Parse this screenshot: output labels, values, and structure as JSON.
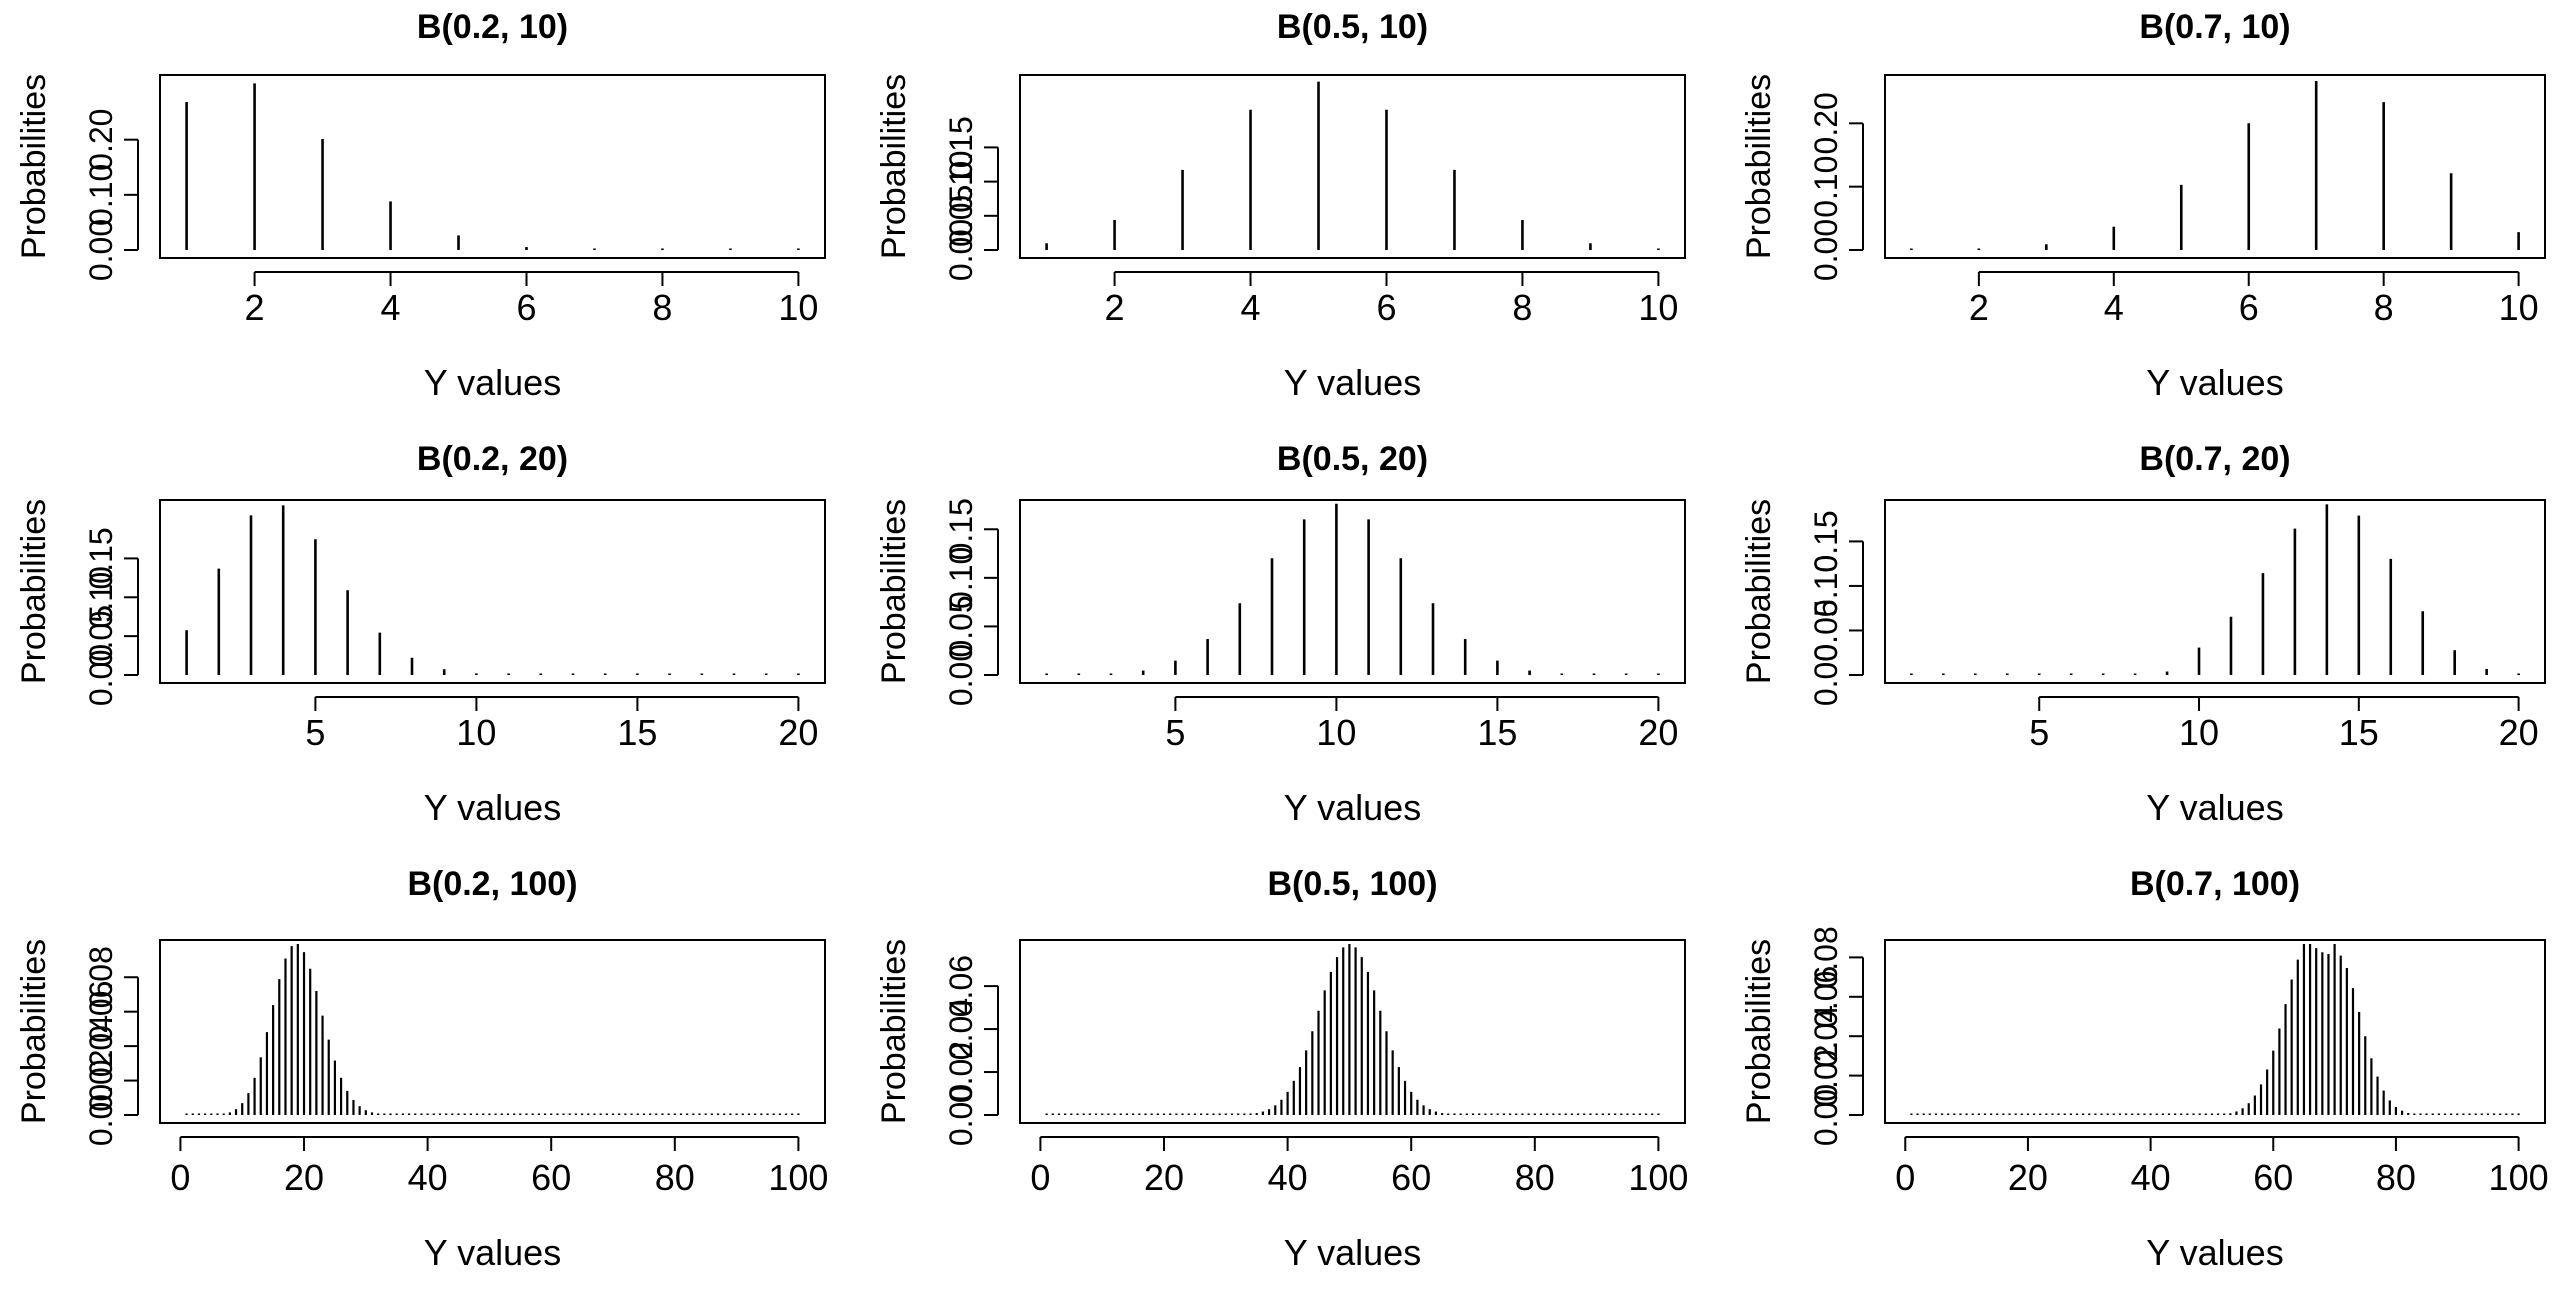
{
  "chart_data": [
    {
      "type": "bar",
      "title": "B(0.2, 10)",
      "xlabel": "Y values",
      "ylabel": "Probabilities",
      "x": [
        1,
        2,
        3,
        4,
        5,
        6,
        7,
        8,
        9,
        10
      ],
      "values": [
        0.2684,
        0.302,
        0.2013,
        0.0881,
        0.0264,
        0.0055,
        0.0008,
        0.0001,
        0.0,
        0.0
      ],
      "xticks": [
        "2",
        "4",
        "6",
        "8",
        "10"
      ],
      "yticks": [
        "0.00",
        "0.10",
        "0.20"
      ],
      "ylim": [
        0,
        0.31
      ],
      "grid": false
    },
    {
      "type": "bar",
      "title": "B(0.5, 10)",
      "xlabel": "Y values",
      "ylabel": "Probabilities",
      "x": [
        1,
        2,
        3,
        4,
        5,
        6,
        7,
        8,
        9,
        10
      ],
      "values": [
        0.0098,
        0.0439,
        0.1172,
        0.2051,
        0.2461,
        0.2051,
        0.1172,
        0.0439,
        0.0098,
        0.001
      ],
      "xticks": [
        "2",
        "4",
        "6",
        "8",
        "10"
      ],
      "yticks": [
        "0.00",
        "0.05",
        "0.10",
        "0.15"
      ],
      "ylim": [
        0,
        0.25
      ],
      "grid": false
    },
    {
      "type": "bar",
      "title": "B(0.7, 10)",
      "xlabel": "Y values",
      "ylabel": "Probabilities",
      "x": [
        1,
        2,
        3,
        4,
        5,
        6,
        7,
        8,
        9,
        10
      ],
      "values": [
        0.0001,
        0.0014,
        0.009,
        0.0368,
        0.1029,
        0.2001,
        0.2668,
        0.2335,
        0.1211,
        0.0282
      ],
      "xticks": [
        "2",
        "4",
        "6",
        "8",
        "10"
      ],
      "yticks": [
        "0.00",
        "0.10",
        "0.20"
      ],
      "ylim": [
        0,
        0.27
      ],
      "grid": false
    },
    {
      "type": "bar",
      "title": "B(0.2, 20)",
      "xlabel": "Y values",
      "ylabel": "Probabilities",
      "x": [
        1,
        2,
        3,
        4,
        5,
        6,
        7,
        8,
        9,
        10,
        11,
        12,
        13,
        14,
        15,
        16,
        17,
        18,
        19,
        20
      ],
      "values": [
        0.0576,
        0.1369,
        0.2054,
        0.2182,
        0.1746,
        0.1091,
        0.0545,
        0.0222,
        0.0074,
        0.002,
        0.0005,
        0.0001,
        0,
        0,
        0,
        0,
        0,
        0,
        0,
        0
      ],
      "xticks": [
        "5",
        "10",
        "15",
        "20"
      ],
      "yticks": [
        "0.00",
        "0.05",
        "0.10",
        "0.15"
      ],
      "ylim": [
        0,
        0.22
      ],
      "grid": false
    },
    {
      "type": "bar",
      "title": "B(0.5, 20)",
      "xlabel": "Y values",
      "ylabel": "Probabilities",
      "x": [
        1,
        2,
        3,
        4,
        5,
        6,
        7,
        8,
        9,
        10,
        11,
        12,
        13,
        14,
        15,
        16,
        17,
        18,
        19,
        20
      ],
      "values": [
        0,
        0.0002,
        0.0011,
        0.0046,
        0.0148,
        0.037,
        0.0739,
        0.1201,
        0.1602,
        0.1762,
        0.1602,
        0.1201,
        0.0739,
        0.037,
        0.0148,
        0.0046,
        0.0011,
        0.0002,
        0,
        0
      ],
      "xticks": [
        "5",
        "10",
        "15",
        "20"
      ],
      "yticks": [
        "0.00",
        "0.05",
        "0.10",
        "0.15"
      ],
      "ylim": [
        0,
        0.176
      ],
      "grid": false
    },
    {
      "type": "bar",
      "title": "B(0.7, 20)",
      "xlabel": "Y values",
      "ylabel": "Probabilities",
      "x": [
        1,
        2,
        3,
        4,
        5,
        6,
        7,
        8,
        9,
        10,
        11,
        12,
        13,
        14,
        15,
        16,
        17,
        18,
        19,
        20
      ],
      "values": [
        0,
        0,
        0,
        0,
        0,
        0,
        0.0002,
        0.001,
        0.0039,
        0.0308,
        0.0654,
        0.1144,
        0.1643,
        0.1916,
        0.1789,
        0.1304,
        0.0716,
        0.0278,
        0.0068,
        0.0008
      ],
      "xticks": [
        "5",
        "10",
        "15",
        "20"
      ],
      "yticks": [
        "0.00",
        "0.05",
        "0.10",
        "0.15"
      ],
      "ylim": [
        0,
        0.192
      ],
      "grid": false
    },
    {
      "type": "bar",
      "title": "B(0.2, 100)",
      "xlabel": "Y values",
      "ylabel": "Probabilities",
      "x": [
        1,
        2,
        3,
        4,
        5,
        6,
        7,
        8,
        9,
        10,
        11,
        12,
        13,
        14,
        15,
        16,
        17,
        18,
        19,
        20,
        21,
        22,
        23,
        24,
        25,
        26,
        27,
        28,
        29,
        30,
        31,
        32,
        33,
        34,
        35,
        36,
        37,
        38,
        39,
        40,
        41,
        42,
        43,
        44,
        45,
        46,
        47,
        48,
        49,
        50,
        51,
        52,
        53,
        54,
        55,
        56,
        57,
        58,
        59,
        60,
        61,
        62,
        63,
        64,
        65,
        66,
        67,
        68,
        69,
        70,
        71,
        72,
        73,
        74,
        75,
        76,
        77,
        78,
        79,
        80,
        81,
        82,
        83,
        84,
        85,
        86,
        87,
        88,
        89,
        90,
        91,
        92,
        93,
        94,
        95,
        96,
        97,
        98,
        99,
        100
      ],
      "values": [
        0,
        0,
        0,
        0,
        0,
        0.0002,
        0.0006,
        0.0015,
        0.0034,
        0.0069,
        0.0127,
        0.0216,
        0.0335,
        0.0481,
        0.0638,
        0.0789,
        0.0909,
        0.0981,
        0.0993,
        0.0946,
        0.0849,
        0.072,
        0.0577,
        0.0438,
        0.0316,
        0.0216,
        0.014,
        0.0087,
        0.0051,
        0.0028,
        0.0015,
        0.0008,
        0.0004,
        0.0002,
        0.0001,
        0,
        0,
        0,
        0,
        0,
        0,
        0,
        0,
        0,
        0,
        0,
        0,
        0,
        0,
        0,
        0,
        0,
        0,
        0,
        0,
        0,
        0,
        0,
        0,
        0,
        0,
        0,
        0,
        0,
        0,
        0,
        0,
        0,
        0,
        0,
        0,
        0,
        0,
        0,
        0,
        0,
        0,
        0,
        0,
        0,
        0,
        0,
        0,
        0,
        0,
        0,
        0,
        0,
        0,
        0,
        0,
        0,
        0,
        0,
        0,
        0,
        0,
        0,
        0,
        0
      ],
      "xticks": [
        "0",
        "20",
        "40",
        "60",
        "80",
        "100"
      ],
      "yticks": [
        "0.00",
        "0.02",
        "0.04",
        "0.06",
        "0.08"
      ],
      "ylim": [
        0,
        0.0993
      ],
      "grid": false
    },
    {
      "type": "bar",
      "title": "B(0.5, 100)",
      "xlabel": "Y values",
      "ylabel": "Probabilities",
      "x": [
        1,
        2,
        3,
        4,
        5,
        6,
        7,
        8,
        9,
        10,
        11,
        12,
        13,
        14,
        15,
        16,
        17,
        18,
        19,
        20,
        21,
        22,
        23,
        24,
        25,
        26,
        27,
        28,
        29,
        30,
        31,
        32,
        33,
        34,
        35,
        36,
        37,
        38,
        39,
        40,
        41,
        42,
        43,
        44,
        45,
        46,
        47,
        48,
        49,
        50,
        51,
        52,
        53,
        54,
        55,
        56,
        57,
        58,
        59,
        60,
        61,
        62,
        63,
        64,
        65,
        66,
        67,
        68,
        69,
        70,
        71,
        72,
        73,
        74,
        75,
        76,
        77,
        78,
        79,
        80,
        81,
        82,
        83,
        84,
        85,
        86,
        87,
        88,
        89,
        90,
        91,
        92,
        93,
        94,
        95,
        96,
        97,
        98,
        99,
        100
      ],
      "values": [
        0,
        0,
        0,
        0,
        0,
        0,
        0,
        0,
        0,
        0,
        0,
        0,
        0,
        0,
        0,
        0,
        0,
        0,
        0,
        0,
        0,
        0,
        0,
        0,
        0,
        0,
        0,
        0,
        0,
        0,
        0.0001,
        0.0001,
        0.0002,
        0.0005,
        0.0009,
        0.0016,
        0.0027,
        0.0045,
        0.0071,
        0.0108,
        0.0159,
        0.0223,
        0.0301,
        0.039,
        0.0485,
        0.058,
        0.0666,
        0.0735,
        0.078,
        0.0796,
        0.078,
        0.0735,
        0.0666,
        0.058,
        0.0485,
        0.039,
        0.0301,
        0.0223,
        0.0159,
        0.0108,
        0.0071,
        0.0045,
        0.0027,
        0.0016,
        0.0009,
        0.0005,
        0.0002,
        0.0001,
        0.0001,
        0,
        0,
        0,
        0,
        0,
        0,
        0,
        0,
        0,
        0,
        0,
        0,
        0,
        0,
        0,
        0,
        0,
        0,
        0,
        0,
        0,
        0,
        0,
        0,
        0,
        0,
        0,
        0,
        0,
        0,
        0
      ],
      "xticks": [
        "0",
        "20",
        "40",
        "60",
        "80",
        "100"
      ],
      "yticks": [
        "0.00",
        "0.02",
        "0.04",
        "0.06"
      ],
      "ylim": [
        0,
        0.0796
      ],
      "grid": false
    },
    {
      "type": "bar",
      "title": "B(0.7, 100)",
      "xlabel": "Y values",
      "ylabel": "Probabilities",
      "x": [
        1,
        2,
        3,
        4,
        5,
        6,
        7,
        8,
        9,
        10,
        11,
        12,
        13,
        14,
        15,
        16,
        17,
        18,
        19,
        20,
        21,
        22,
        23,
        24,
        25,
        26,
        27,
        28,
        29,
        30,
        31,
        32,
        33,
        34,
        35,
        36,
        37,
        38,
        39,
        40,
        41,
        42,
        43,
        44,
        45,
        46,
        47,
        48,
        49,
        50,
        51,
        52,
        53,
        54,
        55,
        56,
        57,
        58,
        59,
        60,
        61,
        62,
        63,
        64,
        65,
        66,
        67,
        68,
        69,
        70,
        71,
        72,
        73,
        74,
        75,
        76,
        77,
        78,
        79,
        80,
        81,
        82,
        83,
        84,
        85,
        86,
        87,
        88,
        89,
        90,
        91,
        92,
        93,
        94,
        95,
        96,
        97,
        98,
        99,
        100
      ],
      "values": [
        0,
        0,
        0,
        0,
        0,
        0,
        0,
        0,
        0,
        0,
        0,
        0,
        0,
        0,
        0,
        0,
        0,
        0,
        0,
        0,
        0,
        0,
        0,
        0,
        0,
        0,
        0,
        0,
        0,
        0,
        0,
        0,
        0,
        0,
        0,
        0,
        0,
        0,
        0,
        0,
        0,
        0,
        0,
        0,
        0,
        0,
        0,
        0,
        0,
        0.0001,
        0.0002,
        0.0004,
        0.0009,
        0.0018,
        0.0034,
        0.006,
        0.0099,
        0.0155,
        0.0231,
        0.0327,
        0.0439,
        0.0563,
        0.0688,
        0.0789,
        0.0868,
        0.0868,
        0.0847,
        0.0826,
        0.0817,
        0.0868,
        0.0809,
        0.0746,
        0.0644,
        0.0523,
        0.04,
        0.0288,
        0.0195,
        0.0124,
        0.0074,
        0.0041,
        0.0022,
        0.001,
        0.0005,
        0.0002,
        0.0001,
        0,
        0,
        0,
        0,
        0,
        0,
        0,
        0,
        0,
        0,
        0,
        0,
        0,
        0,
        0
      ],
      "xticks": [
        "0",
        "20",
        "40",
        "60",
        "80",
        "100"
      ],
      "yticks": [
        "0.00",
        "0.02",
        "0.04",
        "0.06",
        "0.08"
      ],
      "ylim": [
        0,
        0.0868
      ],
      "grid": false
    }
  ]
}
